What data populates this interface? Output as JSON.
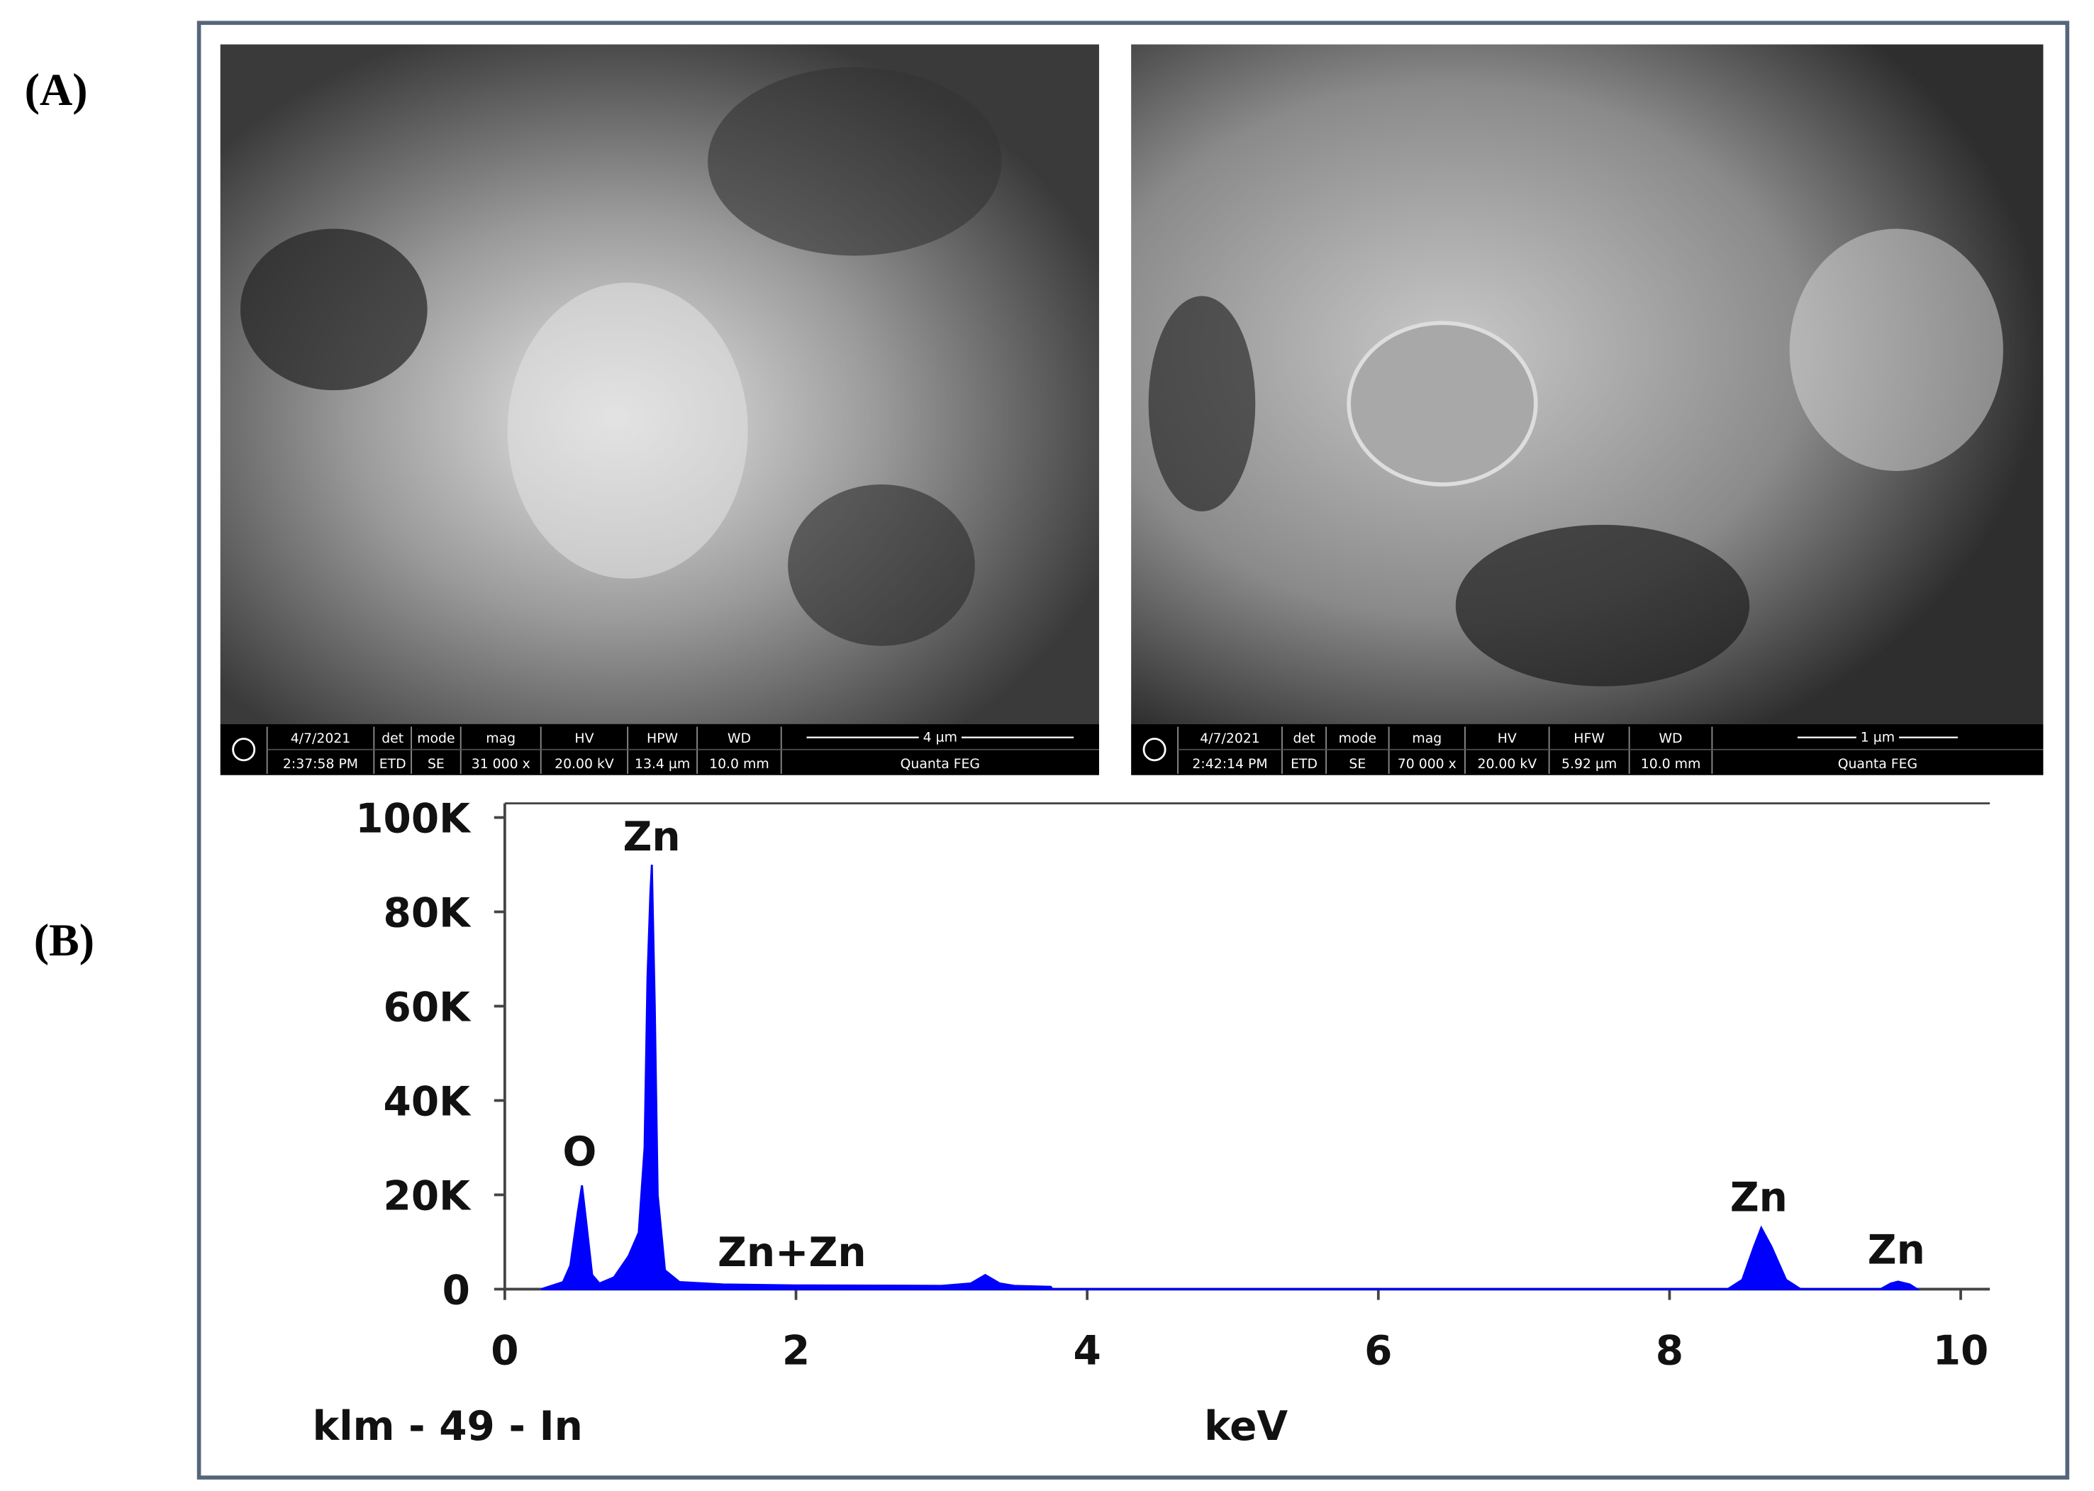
{
  "panel_labels": [
    "(A)",
    "(B)"
  ],
  "sem_images": [
    {
      "date": "4/7/2021",
      "time": "2:37:58 PM",
      "fields": [
        {
          "label": "det",
          "value": "ETD"
        },
        {
          "label": "mode",
          "value": "SE"
        },
        {
          "label": "mag",
          "value": "31 000 x"
        },
        {
          "label": "HV",
          "value": "20.00 kV"
        },
        {
          "label": "HPW",
          "value": "13.4 µm"
        },
        {
          "label": "WD",
          "value": "10.0 mm"
        }
      ],
      "scale": "4 µm",
      "instrument": "Quanta FEG"
    },
    {
      "date": "4/7/2021",
      "time": "2:42:14 PM",
      "fields": [
        {
          "label": "det",
          "value": "ETD"
        },
        {
          "label": "mode",
          "value": "SE"
        },
        {
          "label": "mag",
          "value": "70 000 x"
        },
        {
          "label": "HV",
          "value": "20.00 kV"
        },
        {
          "label": "HFW",
          "value": "5.92 µm"
        },
        {
          "label": "WD",
          "value": "10.0 mm"
        }
      ],
      "scale": "1 µm",
      "instrument": "Quanta FEG"
    }
  ],
  "chart_data": {
    "type": "area",
    "xlabel": "keV",
    "ylabel": "klm - 49 - In",
    "x": [
      0.25,
      0.4,
      0.45,
      0.5,
      0.53,
      0.56,
      0.6,
      0.65,
      0.75,
      0.85,
      0.92,
      0.96,
      0.98,
      1.0,
      1.01,
      1.03,
      1.05,
      1.1,
      1.2,
      1.5,
      2.0,
      3.0,
      3.2,
      3.3,
      3.4,
      3.5,
      3.75,
      3.76,
      8.4,
      8.5,
      8.58,
      8.63,
      8.7,
      8.8,
      8.9,
      9.45,
      9.52,
      9.57,
      9.65,
      9.7
    ],
    "values": [
      0,
      1500,
      5000,
      16000,
      22000,
      14000,
      3000,
      1200,
      2500,
      7000,
      12000,
      30000,
      66000,
      84000,
      90000,
      60000,
      20000,
      4000,
      1500,
      1000,
      800,
      700,
      1200,
      3000,
      1200,
      700,
      500,
      0,
      0,
      2000,
      9000,
      13000,
      9000,
      2000,
      0,
      0,
      1200,
      1600,
      1000,
      0
    ],
    "color": "#0000ff",
    "annotations": [
      "O",
      "Zn",
      "Zn+Zn",
      "Zn",
      "Zn"
    ],
    "xlim": [
      0,
      10.2
    ],
    "ylim": [
      0,
      103000
    ],
    "xticks": [
      0,
      2,
      4,
      6,
      8,
      10
    ],
    "yticks": [
      0,
      {
        "value": 20000,
        "label": "20K"
      },
      {
        "value": 40000,
        "label": "40K"
      },
      {
        "value": 60000,
        "label": "60K"
      },
      {
        "value": 80000,
        "label": "80K"
      },
      {
        "value": 100000,
        "label": "100K"
      }
    ]
  }
}
